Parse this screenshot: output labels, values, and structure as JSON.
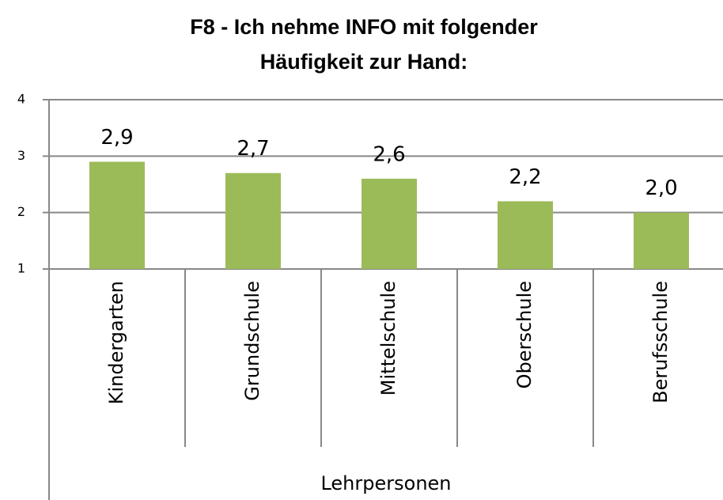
{
  "chart_data": {
    "type": "bar",
    "title": "F8 - Ich nehme INFO mit folgender Häufigkeit zur Hand:",
    "categories": [
      "Kindergarten",
      "Grundschule",
      "Mittelschule",
      "Oberschule",
      "Berufsschule"
    ],
    "values": [
      2.9,
      2.7,
      2.6,
      2.2,
      2.0
    ],
    "value_labels": [
      "2,9",
      "2,7",
      "2,6",
      "2,2",
      "2,0"
    ],
    "color": "#9bbb59",
    "xlabel": "Lehrpersonen",
    "ylim": [
      1,
      4
    ],
    "yticks": [
      1,
      2,
      3,
      4
    ],
    "grid": true
  }
}
